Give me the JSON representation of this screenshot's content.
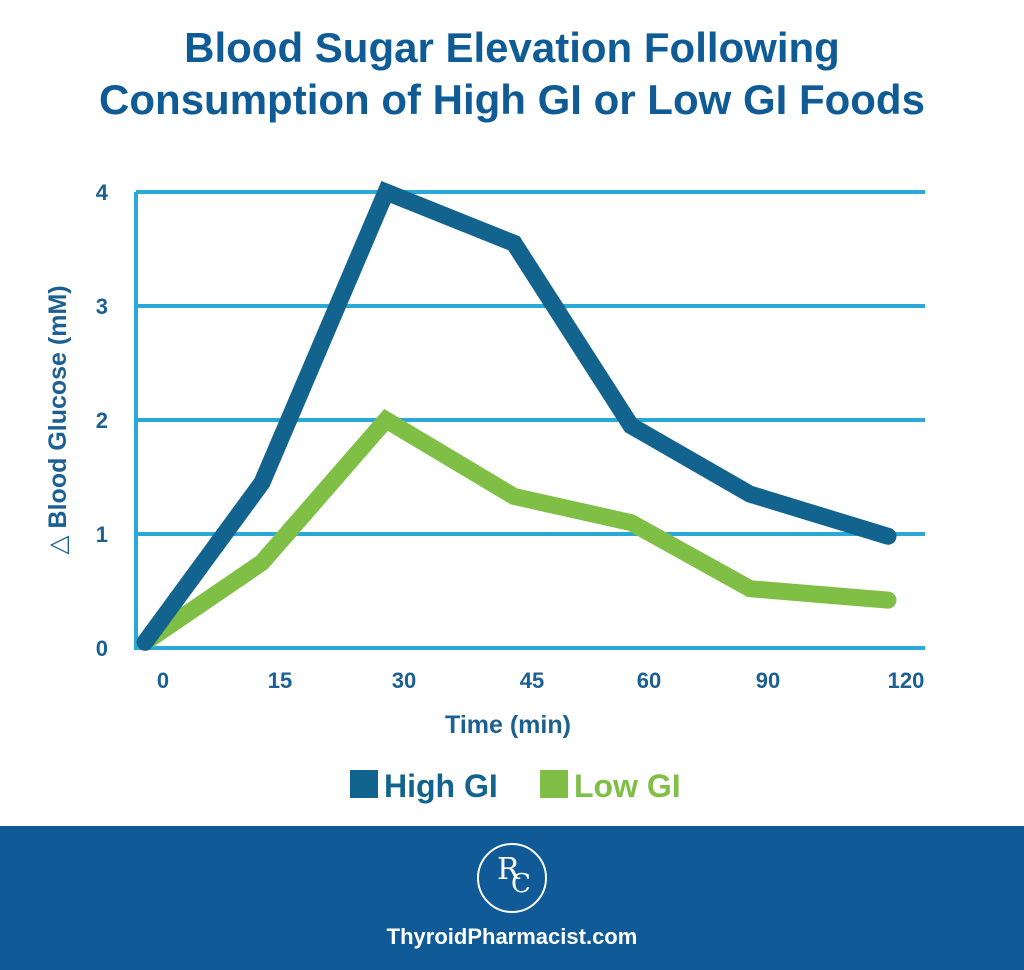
{
  "chart_data": {
    "type": "line",
    "title_line1": "Blood Sugar Elevation Following",
    "title_line2": "Consumption of High GI or Low GI Foods",
    "xlabel": "Time (min)",
    "ylabel": "△ Blood Glucose (mM)",
    "categories": [
      "0",
      "15",
      "30",
      "45",
      "60",
      "90",
      "120"
    ],
    "y_ticks": [
      "0",
      "1",
      "2",
      "3",
      "4"
    ],
    "ylim": [
      0,
      4
    ],
    "grid": true,
    "legend_position": "bottom-center",
    "series": [
      {
        "name": "High GI",
        "color": "#12648f",
        "values": [
          0.05,
          1.45,
          4.0,
          3.55,
          1.95,
          1.35,
          0.98
        ]
      },
      {
        "name": "Low GI",
        "color": "#80bf45",
        "values": [
          0.05,
          0.75,
          2.0,
          1.33,
          1.1,
          0.52,
          0.42
        ]
      }
    ],
    "colors": {
      "title": "#0f5b95",
      "axis_text": "#1b5f93",
      "grid": "#2aa8d8",
      "axis": "#2aa8d8"
    }
  },
  "footer": {
    "background": "#0f5a97",
    "logo_letter_1": "R",
    "logo_letter_2": "C",
    "site": "ThyroidPharmacist.com"
  }
}
